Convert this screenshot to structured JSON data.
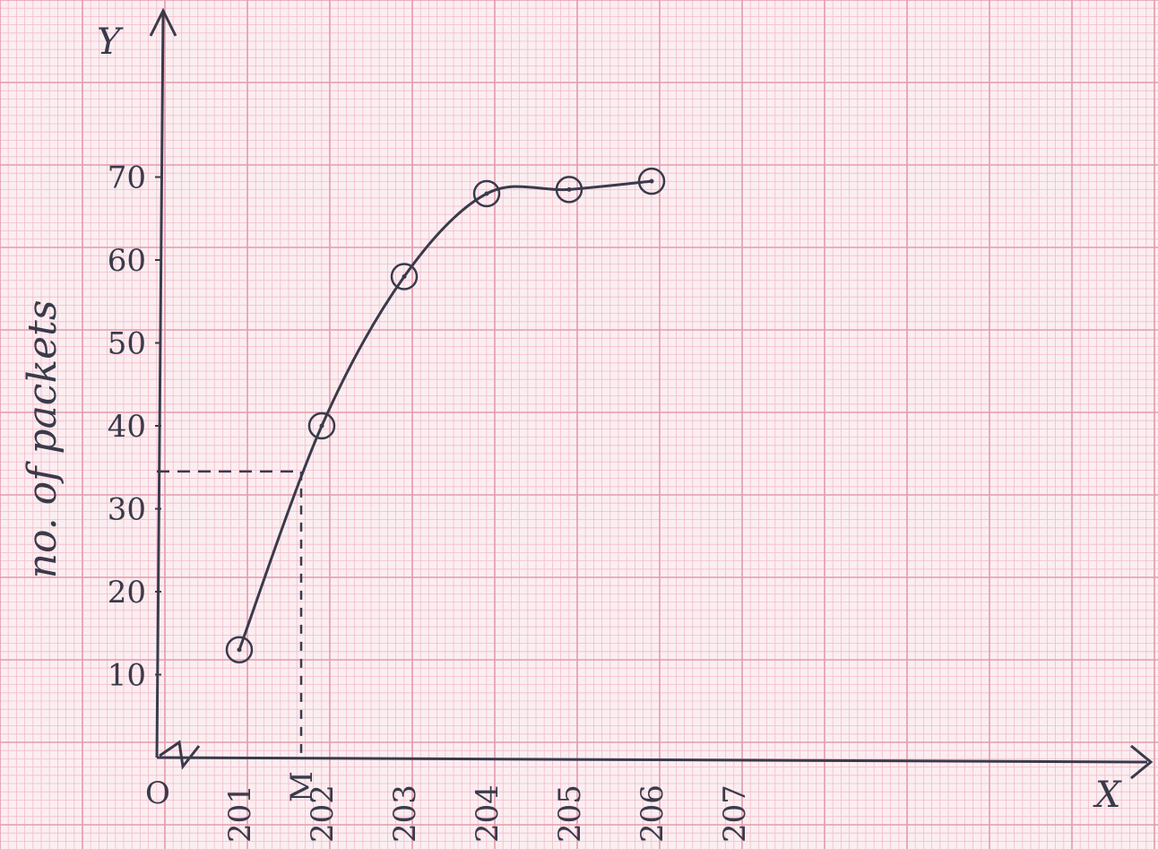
{
  "colors": {
    "paper": "#fbeef1",
    "grid_minor": "#f2bccb",
    "grid_major": "#e59aae",
    "ink": "#3a3a4a"
  },
  "chart_data": {
    "type": "line",
    "ylabel": "no. of packets",
    "x_axis_letter": "X",
    "y_axis_letter": "Y",
    "origin_label": "O",
    "median_label": "M",
    "x_ticks": [
      "201",
      "202",
      "203",
      "204",
      "205",
      "206",
      "207"
    ],
    "y_ticks": [
      "10",
      "20",
      "30",
      "40",
      "50",
      "60",
      "70"
    ],
    "x": [
      201,
      202,
      203,
      204,
      205,
      206
    ],
    "y": [
      13,
      40,
      58,
      68,
      68.5,
      69.5
    ],
    "xlim": [
      200,
      211
    ],
    "ylim": [
      0,
      80
    ],
    "median_x": 201.75,
    "median_y": 34.5,
    "axis_break": true,
    "grid": true
  }
}
